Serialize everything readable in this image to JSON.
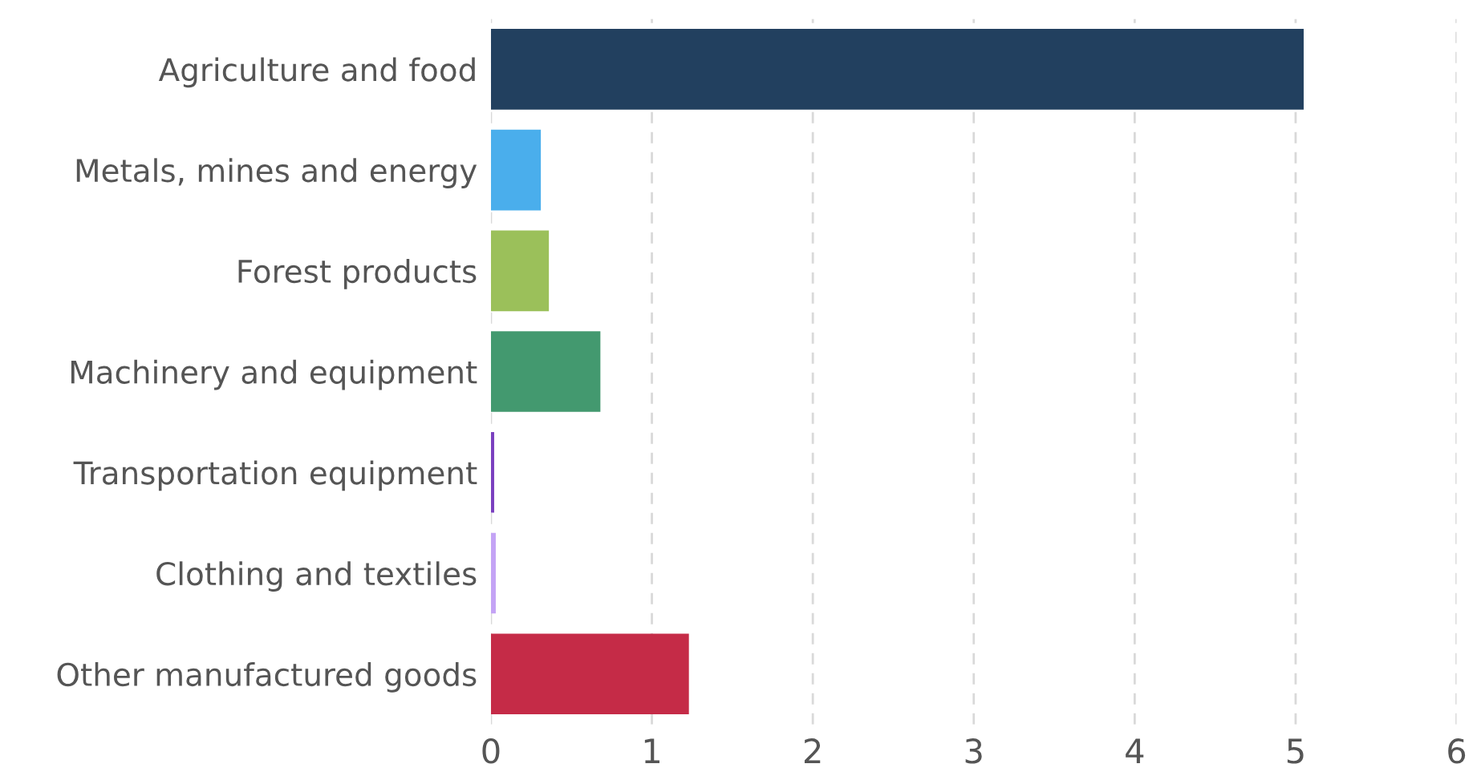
{
  "chart_data": {
    "type": "bar",
    "orientation": "horizontal",
    "categories": [
      "Agriculture and food",
      "Metals, mines and energy",
      "Forest products",
      "Machinery and equipment",
      "Transportation equipment",
      "Clothing and textiles",
      "Other manufactured goods"
    ],
    "values": [
      5.05,
      0.31,
      0.36,
      0.68,
      0.02,
      0.03,
      1.23
    ],
    "colors": [
      "#22405f",
      "#4aaeec",
      "#9bc05a",
      "#43996f",
      "#7a3fbf",
      "#c4a3f5",
      "#c52b47"
    ],
    "xlim": [
      0,
      6
    ],
    "xticks": [
      0,
      1,
      2,
      3,
      4,
      5,
      6
    ],
    "grid": "x",
    "line_style": "dashed"
  }
}
